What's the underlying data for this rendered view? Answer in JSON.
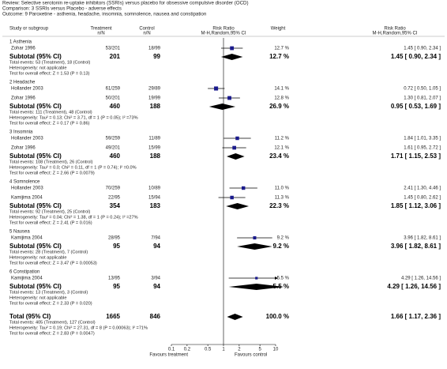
{
  "chart_data": {
    "type": "forest",
    "header": [
      "Review:   Selective serotonin re-uptake inhibitors (SSRIs) versus placebo for obsessive compulsive disorder (OCD)",
      "Comparison:   3 SSRIs versus Placebo - adverse effects",
      "Outcome:   9 Paroxetine - asthenia, headache, insomnia, somnolence, nausea and constipation"
    ],
    "columns": {
      "study": "Study or subgroup",
      "treatment": "Treatment",
      "treatment_sub": "n/N",
      "control": "Control",
      "control_sub": "n/N",
      "weight": "Weight",
      "rr": "Risk Ratio",
      "rr_sub": "M-H,Random,95% CI",
      "rr2": "Risk Ratio",
      "rr2_sub": "M-H,Random,95% CI"
    },
    "groups": [
      {
        "name": "1 Asthenia",
        "studies": [
          {
            "name": "Zohar 1996",
            "treatment": "53/201",
            "control": "18/99",
            "weight": 12.7,
            "weight_label": "12.7 %",
            "rr": 1.45,
            "lo": 0.9,
            "hi": 2.34,
            "ci_label": "1.45 [ 0.90, 2.34 ]"
          }
        ],
        "subtotal": {
          "name": "Subtotal (95% CI)",
          "treatment": 201,
          "control": 99,
          "weight": 12.7,
          "weight_label": "12.7 %",
          "rr": 1.45,
          "lo": 0.9,
          "hi": 2.34,
          "ci_label": "1.45 [ 0.90, 2.34 ]"
        },
        "notes": [
          "Total events: 53 (Treatment), 18 (Control)",
          "Heterogeneity: not applicable",
          "Test for overall effect: Z = 1.53 (P = 0.13)"
        ]
      },
      {
        "name": "2 Headache",
        "studies": [
          {
            "name": "Hollander 2003",
            "treatment": "61/259",
            "control": "29/89",
            "weight": 14.1,
            "weight_label": "14.1 %",
            "rr": 0.72,
            "lo": 0.5,
            "hi": 1.05,
            "ci_label": "0.72 [ 0.50, 1.05 ]"
          },
          {
            "name": "Zohar 1996",
            "treatment": "50/201",
            "control": "19/99",
            "weight": 12.8,
            "weight_label": "12.8 %",
            "rr": 1.3,
            "lo": 0.81,
            "hi": 2.07,
            "ci_label": "1.30 [ 0.81, 2.07 ]"
          }
        ],
        "subtotal": {
          "name": "Subtotal (95% CI)",
          "treatment": 460,
          "control": 188,
          "weight": 26.9,
          "weight_label": "26.9 %",
          "rr": 0.95,
          "lo": 0.53,
          "hi": 1.69,
          "ci_label": "0.95 [ 0.53, 1.69 ]"
        },
        "notes": [
          "Total events: 111 (Treatment), 48 (Control)",
          "Heterogeneity: Tau² = 0.13; Chi² = 3.71, df = 1 (P = 0.05); I² =73%",
          "Test for overall effect: Z = 0.17 (P = 0.86)"
        ]
      },
      {
        "name": "3 Insomnia",
        "studies": [
          {
            "name": "Hollander 2003",
            "treatment": "59/259",
            "control": "11/89",
            "weight": 11.2,
            "weight_label": "11.2 %",
            "rr": 1.84,
            "lo": 1.01,
            "hi": 3.35,
            "ci_label": "1.84 [ 1.01, 3.35 ]"
          },
          {
            "name": "Zohar 1996",
            "treatment": "49/201",
            "control": "15/99",
            "weight": 12.1,
            "weight_label": "12.1 %",
            "rr": 1.61,
            "lo": 0.95,
            "hi": 2.72,
            "ci_label": "1.61 [ 0.95, 2.72 ]"
          }
        ],
        "subtotal": {
          "name": "Subtotal (95% CI)",
          "treatment": 460,
          "control": 188,
          "weight": 23.4,
          "weight_label": "23.4 %",
          "rr": 1.71,
          "lo": 1.15,
          "hi": 2.53,
          "ci_label": "1.71 [ 1.15, 2.53 ]"
        },
        "notes": [
          "Total events: 108 (Treatment), 26 (Control)",
          "Heterogeneity: Tau² = 0.0; Chi² = 0.11, df = 1 (P = 0.74); I² =0.0%",
          "Test for overall effect: Z = 2.66 (P = 0.0079)"
        ]
      },
      {
        "name": "4 Somnolence",
        "studies": [
          {
            "name": "Hollander 2003",
            "treatment": "70/259",
            "control": "10/89",
            "weight": 11.0,
            "weight_label": "11.0 %",
            "rr": 2.41,
            "lo": 1.3,
            "hi": 4.46,
            "ci_label": "2.41 [ 1.30, 4.46 ]"
          },
          {
            "name": "Kamijima 2004",
            "treatment": "22/95",
            "control": "15/94",
            "weight": 11.3,
            "weight_label": "11.3 %",
            "rr": 1.45,
            "lo": 0.8,
            "hi": 2.62,
            "ci_label": "1.45 [ 0.80, 2.62 ]"
          }
        ],
        "subtotal": {
          "name": "Subtotal (95% CI)",
          "treatment": 354,
          "control": 183,
          "weight": 22.3,
          "weight_label": "22.3 %",
          "rr": 1.85,
          "lo": 1.12,
          "hi": 3.06,
          "ci_label": "1.85 [ 1.12, 3.06 ]"
        },
        "notes": [
          "Total events: 92 (Treatment), 25 (Control)",
          "Heterogeneity: Tau² = 0.04; Chi² = 1.38, df = 1 (P = 0.24); I² =27%",
          "Test for overall effect: Z = 2.41 (P = 0.016)"
        ]
      },
      {
        "name": "5 Nausea",
        "studies": [
          {
            "name": "Kamijima 2004",
            "treatment": "28/95",
            "control": "7/94",
            "weight": 9.2,
            "weight_label": "9.2 %",
            "rr": 3.96,
            "lo": 1.82,
            "hi": 8.61,
            "ci_label": "3.96 [ 1.82, 8.61 ]"
          }
        ],
        "subtotal": {
          "name": "Subtotal (95% CI)",
          "treatment": 95,
          "control": 94,
          "weight": 9.2,
          "weight_label": "9.2 %",
          "rr": 3.96,
          "lo": 1.82,
          "hi": 8.61,
          "ci_label": "3.96 [ 1.82, 8.61 ]"
        },
        "notes": [
          "Total events: 28 (Treatment), 7 (Control)",
          "Heterogeneity: not applicable",
          "Test for overall effect: Z = 3.47 (P = 0.00053)"
        ]
      },
      {
        "name": "6 Constipation",
        "studies": [
          {
            "name": "Kamijima 2004",
            "treatment": "13/95",
            "control": "3/94",
            "weight": 5.5,
            "weight_label": "5.5 %",
            "rr": 4.29,
            "lo": 1.26,
            "hi": 14.56,
            "ci_label": "4.29 [ 1.26, 14.56 ]"
          }
        ],
        "subtotal": {
          "name": "Subtotal (95% CI)",
          "treatment": 95,
          "control": 94,
          "weight": 5.5,
          "weight_label": "5.5 %",
          "rr": 4.29,
          "lo": 1.26,
          "hi": 14.56,
          "ci_label": "4.29 [ 1.26, 14.56 ]"
        },
        "notes": [
          "Total events: 13 (Treatment), 3 (Control)",
          "Heterogeneity: not applicable",
          "Test for overall effect: Z = 2.33 (P = 0.020)"
        ]
      }
    ],
    "total": {
      "name": "Total (95% CI)",
      "treatment": 1665,
      "control": 846,
      "weight": 100.0,
      "weight_label": "100.0 %",
      "rr": 1.66,
      "lo": 1.17,
      "hi": 2.36,
      "ci_label": "1.66 [ 1.17, 2.36 ]",
      "notes": [
        "Total events: 405 (Treatment), 127 (Control)",
        "Heterogeneity: Tau² = 0.19; Chi² = 27.31, df = 8 (P = 0.00063); I² =71%",
        "Test for overall effect: Z = 2.83 (P = 0.0047)"
      ]
    },
    "log_scale": true,
    "xlim": [
      0.1,
      10
    ],
    "xticks": [
      0.1,
      0.2,
      0.5,
      1,
      2,
      5,
      10
    ],
    "xlabel_left": "Favours treatment",
    "xlabel_right": "Favours control",
    "marker_color": "#1a1a8c"
  }
}
